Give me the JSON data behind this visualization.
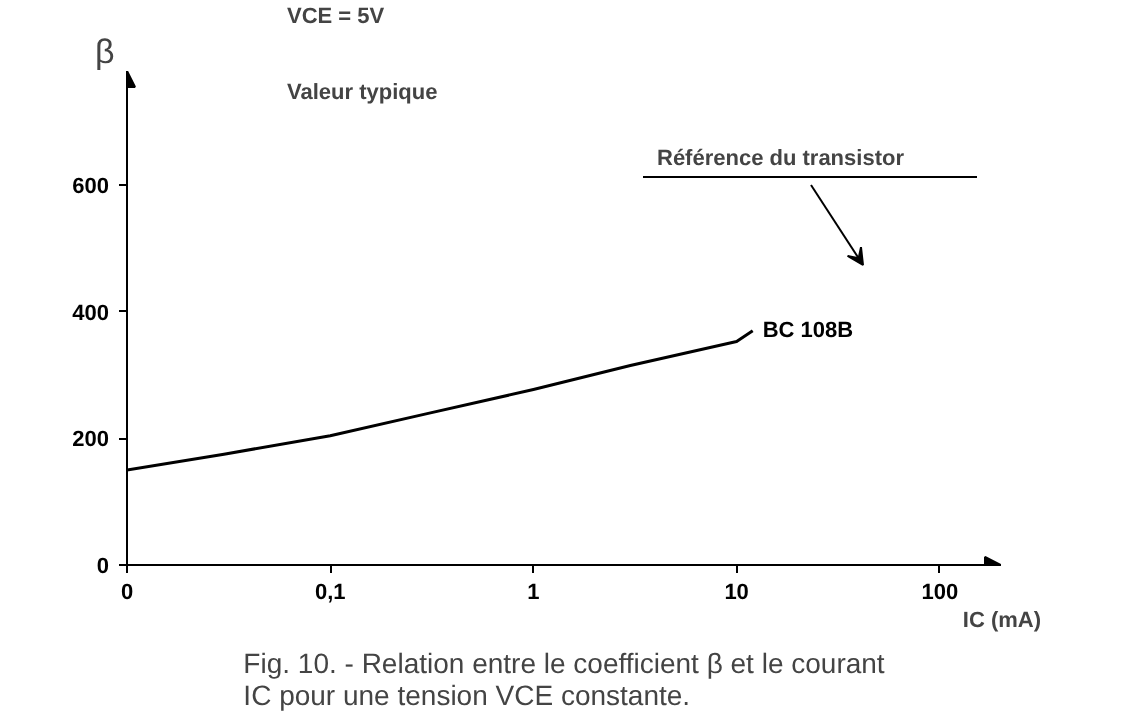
{
  "chart_data": {
    "type": "line",
    "title": "Fig. 10. - Relation entre le coefficient β et le courant\nIC pour une tension VCE constante.",
    "xlabel": "IC (mA)",
    "ylabel": "β",
    "log": "x",
    "xlim": [
      0.01,
      200
    ],
    "ylim": [
      0,
      780
    ],
    "xticks": [
      {
        "value": 0.01,
        "label": "0"
      },
      {
        "value": 0.1,
        "label": "0,1"
      },
      1,
      10,
      100
    ],
    "yticks": [
      0,
      200,
      400,
      600
    ],
    "grid": false,
    "marker": "none",
    "line_style": "solid",
    "annotations": [
      "VCE = 5V",
      "Valeur typique",
      "Référence du transistor"
    ],
    "series": [
      {
        "name": "BC 108B",
        "color": "#000000",
        "x": [
          0.01,
          0.03,
          0.1,
          0.3,
          1,
          3,
          10,
          12
        ],
        "values": [
          150,
          175,
          204,
          239,
          277,
          315,
          353,
          370
        ]
      }
    ]
  }
}
